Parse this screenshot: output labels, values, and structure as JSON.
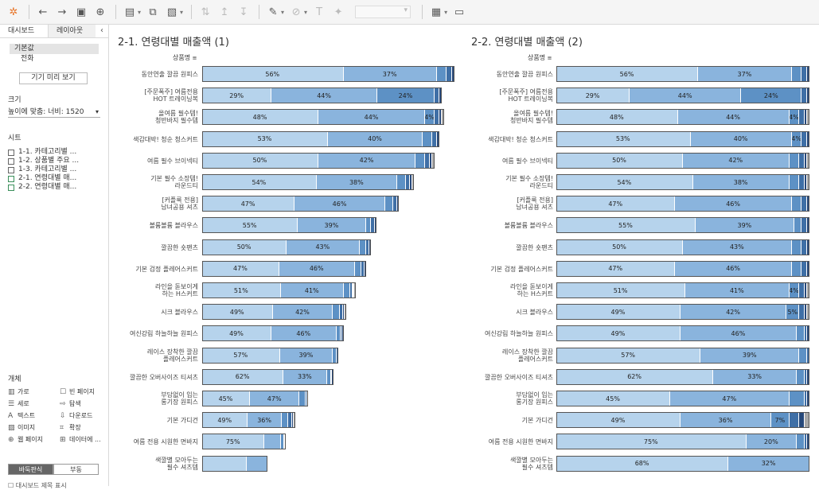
{
  "toolbar": {
    "icons": [
      "tableau-logo-icon",
      "undo-icon",
      "redo-icon",
      "save-icon",
      "new-datasource-icon",
      "new-sheet-icon",
      "duplicate-sheet-icon",
      "clear-sheet-icon",
      "swap-icon",
      "sort-ascending-icon",
      "sort-descending-icon",
      "highlight-icon",
      "group-icon",
      "label-icon",
      "pin-icon",
      "fit-dropdown",
      "show-cards-icon",
      "presentation-icon"
    ]
  },
  "sidebar": {
    "tabs": [
      "대시보드",
      "레이아웃"
    ],
    "device_default": "기본값",
    "device_phone": "전화",
    "preview_button": "기기 미리 보기",
    "size_title": "크기",
    "size_value": "높이에 맞춤: 너비: 1520",
    "sheets_title": "시트",
    "sheets": [
      "1-1. 카테고리별 ...",
      "1-2. 상품별 주요 ...",
      "1-3. 카테고리별 ...",
      "2-1. 연령대별 매...",
      "2-2. 연령대별 매..."
    ],
    "objects_title": "개체",
    "objects": [
      {
        "icon": "horizontal-icon",
        "label": "가로"
      },
      {
        "icon": "blank-page-icon",
        "label": "빈 페이지"
      },
      {
        "icon": "vertical-icon",
        "label": "세로"
      },
      {
        "icon": "navigation-icon",
        "label": "탐색"
      },
      {
        "icon": "text-icon",
        "label": "텍스트"
      },
      {
        "icon": "download-icon",
        "label": "다운로드"
      },
      {
        "icon": "image-icon",
        "label": "이미지"
      },
      {
        "icon": "extension-icon",
        "label": "확장"
      },
      {
        "icon": "web-page-icon",
        "label": "웹 페이지"
      },
      {
        "icon": "data-icon",
        "label": "데이터에 ..."
      }
    ],
    "layout_modes": [
      "바둑판식",
      "부동"
    ],
    "bottom_option": "대시보드 제목 표시"
  },
  "colors": {
    "s1": "#b6d3ec",
    "s2": "#8ab4dd",
    "s3": "#5d91c5",
    "s4": "#3f6fa6",
    "s5": "#27497b",
    "s6": "#a8a8a8"
  },
  "chart_data": [
    {
      "type": "bar",
      "stacked": true,
      "title": "2-1. 연령대별 매출액 (1)",
      "field_label": "상품명",
      "categories": [
        "동안연출 깔끔 원피스",
        "[주문폭주] 여름전용 HOT 트레이닝복",
        "올여름 필수템! 청반바지 필수템",
        "색감대박! 청순 청스커트",
        "여름 필수 브이넥티",
        "기본 필수 소장템! 라운드티",
        "[커플룩 전용] 남녀공용 셔츠",
        "볼륨볼륨 블라우스",
        "깔끔한 숏팬츠",
        "기본 검정 플레어스커트",
        "라인을 돋보이게 하는 H스커트",
        "시크 블라우스",
        "여신강림 하늘하늘 원피스",
        "레이스 장착한 깔끔 플레어스커트",
        "깔끔한 오버사이즈 티셔츠",
        "부담없이 입는 롱기장 원피스",
        "기본 가디건",
        "여름 전용 시원한 면바지",
        "색깔별 모아두는 필수 셔츠템"
      ],
      "totals": [
        100,
        95,
        96,
        94,
        92,
        84,
        78,
        69,
        67,
        65,
        61,
        57,
        56,
        54,
        52,
        42,
        37,
        33,
        26
      ],
      "series": [
        [
          56,
          29,
          48,
          53,
          50,
          54,
          47,
          55,
          50,
          47,
          51,
          49,
          49,
          57,
          62,
          45,
          49,
          75,
          68
        ],
        [
          37,
          44,
          44,
          40,
          42,
          38,
          46,
          39,
          43,
          46,
          41,
          42,
          46,
          39,
          33,
          47,
          36,
          20,
          32
        ],
        [
          4,
          24,
          4,
          4,
          4,
          4,
          4,
          3,
          4,
          4,
          4,
          5,
          3,
          3,
          3,
          6,
          7,
          3,
          0
        ],
        [
          2,
          2,
          2,
          2,
          2,
          2,
          2,
          2,
          2,
          2,
          2,
          2,
          1,
          1,
          1,
          1,
          4,
          1,
          0
        ],
        [
          1,
          1,
          1,
          1,
          1,
          1,
          1,
          1,
          1,
          1,
          1,
          1,
          1,
          0,
          1,
          1,
          2,
          1,
          0
        ],
        [
          0,
          0,
          1,
          0,
          1,
          1,
          0,
          0,
          0,
          0,
          1,
          1,
          0,
          0,
          0,
          0,
          2,
          0,
          0
        ]
      ],
      "show_labels": [
        [
          true,
          true,
          true,
          true,
          true,
          true,
          true,
          true,
          true,
          true,
          true,
          true,
          true,
          true,
          true,
          true,
          true,
          true,
          false
        ],
        [
          true,
          true,
          true,
          true,
          true,
          true,
          true,
          true,
          true,
          true,
          true,
          true,
          true,
          true,
          true,
          true,
          true,
          false,
          false
        ],
        [
          false,
          true,
          true,
          false,
          false,
          false,
          false,
          false,
          false,
          false,
          false,
          false,
          false,
          false,
          false,
          false,
          false,
          false,
          false
        ]
      ]
    },
    {
      "type": "bar",
      "stacked": true,
      "title": "2-2. 연령대별 매출액 (2)",
      "field_label": "상품명",
      "categories": [
        "동안연출 깔끔 원피스",
        "[주문폭주] 여름전용 HOT 트레이닝복",
        "올여름 필수템! 청반바지 필수템",
        "색감대박! 청순 청스커트",
        "여름 필수 브이넥티",
        "기본 필수 소장템! 라운드티",
        "[커플룩 전용] 남녀공용 셔츠",
        "볼륨볼륨 블라우스",
        "깔끔한 숏팬츠",
        "기본 검정 플레어스커트",
        "라인을 돋보이게 하는 H스커트",
        "시크 블라우스",
        "여신강림 하늘하늘 원피스",
        "레이스 장착한 깔끔 플레어스커트",
        "깔끔한 오버사이즈 티셔츠",
        "부담없이 입는 롱기장 원피스",
        "기본 가디건",
        "여름 전용 시원한 면바지",
        "색깔별 모아두는 필수 셔츠템"
      ],
      "totals": [
        100,
        100,
        100,
        100,
        100,
        100,
        100,
        100,
        100,
        100,
        100,
        100,
        100,
        100,
        100,
        100,
        100,
        100,
        100
      ],
      "series": [
        [
          56,
          29,
          48,
          53,
          50,
          54,
          47,
          55,
          50,
          47,
          51,
          49,
          49,
          57,
          62,
          45,
          49,
          75,
          68
        ],
        [
          37,
          44,
          44,
          40,
          42,
          38,
          46,
          39,
          43,
          46,
          41,
          42,
          46,
          39,
          33,
          47,
          36,
          20,
          32
        ],
        [
          4,
          24,
          4,
          4,
          4,
          4,
          4,
          3,
          4,
          4,
          4,
          5,
          3,
          3,
          3,
          6,
          7,
          3,
          0
        ],
        [
          2,
          2,
          2,
          2,
          2,
          2,
          2,
          2,
          2,
          2,
          2,
          2,
          1,
          1,
          1,
          1,
          4,
          1,
          0
        ],
        [
          1,
          1,
          1,
          1,
          1,
          1,
          1,
          1,
          1,
          1,
          1,
          1,
          1,
          0,
          1,
          1,
          2,
          1,
          0
        ],
        [
          0,
          0,
          1,
          0,
          1,
          1,
          0,
          0,
          0,
          0,
          1,
          1,
          0,
          0,
          0,
          0,
          2,
          0,
          0
        ]
      ],
      "show_labels": [
        [
          true,
          true,
          true,
          true,
          true,
          true,
          true,
          true,
          true,
          true,
          true,
          true,
          true,
          true,
          true,
          true,
          true,
          true,
          true
        ],
        [
          true,
          true,
          true,
          true,
          true,
          true,
          true,
          true,
          true,
          true,
          true,
          true,
          true,
          true,
          true,
          true,
          true,
          true,
          true
        ],
        [
          false,
          true,
          true,
          true,
          false,
          false,
          false,
          false,
          false,
          false,
          true,
          true,
          false,
          false,
          false,
          false,
          true,
          false,
          false
        ]
      ]
    }
  ]
}
